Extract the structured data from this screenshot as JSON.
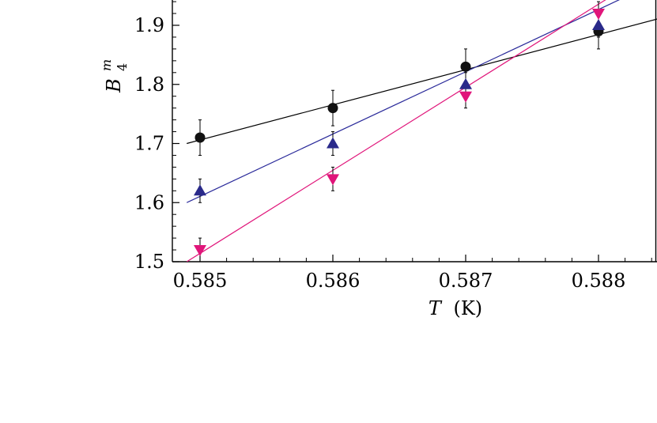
{
  "chart_data": {
    "type": "scatter",
    "xlabel": {
      "symbol": "T",
      "unit": "(K)"
    },
    "ylabel": {
      "symbol": "B",
      "superscript": "m",
      "subscript": "4"
    },
    "xlim": [
      0.5848,
      0.5885
    ],
    "ylim": [
      1.5,
      1.95
    ],
    "xticks": [
      0.585,
      0.586,
      0.587,
      0.588
    ],
    "xtick_labels": [
      "0.585",
      "0.586",
      "0.587",
      "0.588"
    ],
    "yticks": [
      1.5,
      1.6,
      1.7,
      1.8,
      1.9
    ],
    "ytick_labels": [
      "1.5",
      "1.6",
      "1.7",
      "1.8",
      "1.9"
    ],
    "grid": false,
    "series": [
      {
        "marker": "circle",
        "color": "#111111",
        "line_color": "#000000",
        "x": [
          0.585,
          0.586,
          0.587,
          0.588
        ],
        "y": [
          1.71,
          1.76,
          1.83,
          1.89
        ],
        "yerr": [
          0.03,
          0.03,
          0.03,
          0.03
        ],
        "fit_line": {
          "x": [
            0.5849,
            0.5886
          ],
          "y": [
            1.7,
            1.92
          ]
        }
      },
      {
        "marker": "triangle-up",
        "color": "#2a2a8a",
        "line_color": "#2a2a9a",
        "x": [
          0.585,
          0.586,
          0.587,
          0.588
        ],
        "y": [
          1.62,
          1.7,
          1.8,
          1.9
        ],
        "yerr": [
          0.02,
          0.02,
          0.02,
          0.02
        ],
        "fit_line": {
          "x": [
            0.5849,
            0.5886
          ],
          "y": [
            1.6,
            1.99
          ]
        }
      },
      {
        "marker": "triangle-down",
        "color": "#e0157a",
        "line_color": "#e0157a",
        "x": [
          0.585,
          0.586,
          0.587,
          0.588
        ],
        "y": [
          1.52,
          1.64,
          1.78,
          1.92
        ],
        "yerr": [
          0.02,
          0.02,
          0.02,
          0.02
        ],
        "fit_line": {
          "x": [
            0.5849,
            0.5886
          ],
          "y": [
            1.5,
            2.02
          ]
        }
      }
    ]
  }
}
